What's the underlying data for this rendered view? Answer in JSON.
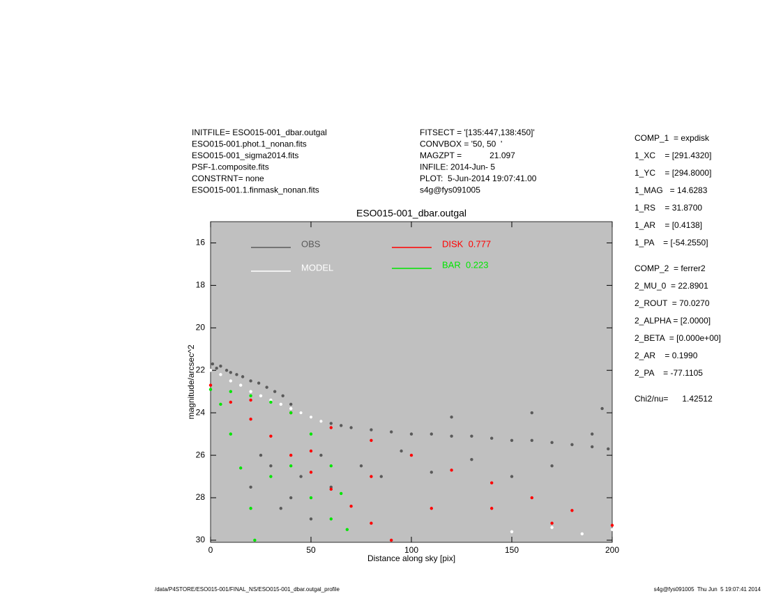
{
  "chart_data": {
    "type": "scatter",
    "title": "ESO015-001_dbar.outgal",
    "x_label": "Distance along sky [pix]",
    "y_label": "magnitude/arcsec^2",
    "header_left": [
      "INITFILE= ESO015-001_dbar.outgal",
      "ESO015-001.phot.1_nonan.fits",
      "ESO015-001_sigma2014.fits",
      "PSF-1.composite.fits",
      "CONSTRNT= none",
      "ESO015-001.1.finmask_nonan.fits"
    ],
    "header_middle": [
      "FITSECT = '[135:447,138:450]'",
      "CONVBOX = '50, 50  '",
      "MAGZPT =            21.097",
      "INFILE: 2014-Jun- 5",
      "PLOT:  5-Jun-2014 19:07:41.00",
      "s4g@fys091005"
    ],
    "parameters": [
      [
        "COMP_1  = expdisk",
        "1_XC    = [291.4320]",
        "1_YC    = [294.8000]",
        "1_MAG   = 14.6283",
        "1_RS    = 31.8700",
        "1_AR    = [0.4138]",
        "1_PA    = [-54.2550]"
      ],
      [
        "COMP_2  = ferrer2",
        "2_MU_0  = 22.8901",
        "2_ROUT  = 70.0270",
        "2_ALPHA = [2.0000]",
        "2_BETA  = [0.000e+00]",
        "2_AR    = 0.1990",
        "2_PA    = -77.1105"
      ],
      [
        "Chi2/nu=      1.42512"
      ]
    ],
    "footer_left": "/data/P4STORE/ESO015-001/FINAL_NS/ESO015-001_dbar.outgal_profile",
    "footer_right": "s4g@fys091005  Thu Jun  5 19:07:41 2014",
    "xlim": [
      0,
      200
    ],
    "xticks": [
      0,
      50,
      100,
      150,
      200
    ],
    "ylim": [
      15,
      30.1
    ],
    "yticks": [
      16,
      18,
      20,
      22,
      24,
      26,
      28,
      30
    ],
    "y_inverted": true,
    "plot_background": "#c0c0c0",
    "series": [
      {
        "name": "OBS",
        "color": "#5a5a5a",
        "x": [
          1,
          3,
          5,
          8,
          10,
          13,
          16,
          20,
          24,
          28,
          32,
          36,
          40,
          45,
          50,
          55,
          60,
          65,
          70,
          80,
          90,
          100,
          110,
          120,
          130,
          140,
          150,
          160,
          170,
          180,
          190,
          198,
          30,
          45,
          55,
          40,
          60,
          75,
          85,
          95,
          110,
          130,
          150,
          170,
          190,
          20,
          35,
          50,
          25,
          120,
          160,
          195
        ],
        "values": [
          21.7,
          21.9,
          21.8,
          22.0,
          22.1,
          22.2,
          22.3,
          22.5,
          22.6,
          22.8,
          23.0,
          23.2,
          23.6,
          24.0,
          24.2,
          24.4,
          24.5,
          24.6,
          24.7,
          24.8,
          24.9,
          25.0,
          25.0,
          25.1,
          25.1,
          25.2,
          25.3,
          25.3,
          25.4,
          25.5,
          25.6,
          25.7,
          26.5,
          27.0,
          26.0,
          28.0,
          27.5,
          26.5,
          27.0,
          25.8,
          26.8,
          26.2,
          27.0,
          26.5,
          25.0,
          27.5,
          28.5,
          29.0,
          26.0,
          24.2,
          24.0,
          23.8
        ]
      },
      {
        "name": "MODEL",
        "color": "#ffffff",
        "x": [
          0,
          5,
          10,
          15,
          20,
          25,
          30,
          35,
          40,
          45,
          50,
          55,
          150,
          170,
          185,
          200
        ],
        "values": [
          22.0,
          22.2,
          22.5,
          22.7,
          23.0,
          23.2,
          23.4,
          23.6,
          23.8,
          24.0,
          24.2,
          24.4,
          29.6,
          29.4,
          29.7,
          29.5
        ]
      },
      {
        "name": "DISK  0.777",
        "color": "#ff0000",
        "x": [
          0,
          10,
          20,
          30,
          40,
          50,
          60,
          70,
          80,
          90,
          20,
          40,
          60,
          80,
          100,
          120,
          140,
          160,
          180,
          200,
          50,
          80,
          110,
          140,
          170
        ],
        "values": [
          22.7,
          23.5,
          24.3,
          25.1,
          26.0,
          26.8,
          27.6,
          28.4,
          29.2,
          30.0,
          23.4,
          24.0,
          24.7,
          25.3,
          26.0,
          26.7,
          27.3,
          28.0,
          28.6,
          29.3,
          25.8,
          27.0,
          28.5,
          28.5,
          29.2
        ]
      },
      {
        "name": "BAR  0.223",
        "color": "#00e600",
        "x": [
          0,
          5,
          10,
          15,
          20,
          22,
          10,
          20,
          30,
          40,
          50,
          60,
          65,
          68,
          30,
          40,
          50,
          60
        ],
        "values": [
          22.9,
          23.6,
          25.0,
          26.6,
          28.5,
          30.0,
          23.0,
          23.2,
          23.5,
          24.0,
          25.0,
          26.5,
          27.8,
          29.5,
          27.0,
          26.5,
          28.0,
          29.0
        ]
      }
    ]
  }
}
